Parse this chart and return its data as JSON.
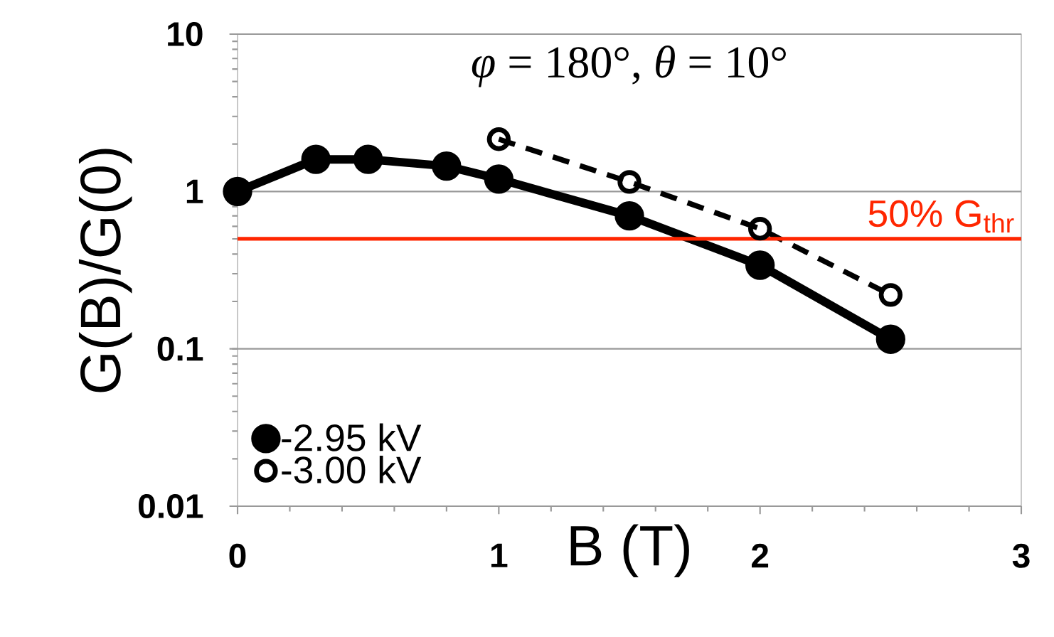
{
  "chart_data": {
    "type": "line",
    "xlabel": "B (T)",
    "ylabel": "G(B)/G(0)",
    "annotations": [
      "*φ* = 180°,   *θ* = 10°"
    ],
    "series": [
      {
        "name": "-2.95 kV",
        "color": "#000000",
        "x": [
          0,
          0.3,
          0.5,
          0.8,
          1.0,
          1.5,
          2.0,
          2.5
        ],
        "values": [
          1.0,
          1.6,
          1.6,
          1.45,
          1.2,
          0.7,
          0.34,
          0.115
        ],
        "line_style": "solid"
      },
      {
        "name": "-3.00 kV",
        "color": "#000000",
        "x": [
          1.0,
          1.5,
          2.0,
          2.5
        ],
        "values": [
          2.15,
          1.15,
          0.58,
          0.22
        ],
        "line_style": "dashed"
      }
    ],
    "xlim": [
      0,
      3
    ],
    "xticks": [
      0,
      1,
      2,
      3
    ],
    "ylim": [
      0.01,
      10
    ],
    "yticks": [
      0.01,
      0.1,
      1,
      10
    ],
    "log": "y",
    "grid": "y",
    "ref_lines": [
      {
        "axis": "y",
        "value": 0.5,
        "label": "50% G$_{thr}$",
        "color": "#ff2600",
        "line_style": "solid"
      }
    ],
    "legend": "bottom left",
    "marker": "circle"
  }
}
